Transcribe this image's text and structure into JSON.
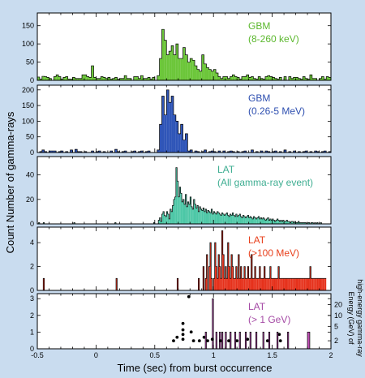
{
  "chart_data": {
    "type": "bar",
    "xlabel": "Time (sec) from burst occurrence",
    "ylabel": "Count Number of gamma-rays",
    "right_ylabel_line1": "high-energy gamma-ray",
    "right_ylabel_line2": "Energy (GeV) of",
    "xlim": [
      -0.5,
      2.0
    ],
    "x_ticks": [
      "-0.5",
      "0",
      "0.5",
      "1",
      "1.5",
      "2"
    ],
    "panels": [
      {
        "label_lines": [
          "GBM",
          "(8-260 keV)"
        ],
        "label_color": "#5cb82e",
        "fill_color": "#6cc63a",
        "ylim": [
          0,
          185
        ],
        "y_ticks": [
          "0",
          "50",
          "100",
          "150"
        ],
        "bin_width": 0.02,
        "x_start": -0.5,
        "values": [
          9,
          3,
          11,
          10,
          8,
          5,
          0,
          10,
          15,
          10,
          3,
          8,
          10,
          3,
          3,
          8,
          5,
          5,
          5,
          15,
          15,
          10,
          8,
          40,
          8,
          5,
          5,
          10,
          8,
          5,
          8,
          3,
          5,
          8,
          3,
          5,
          5,
          13,
          5,
          5,
          0,
          10,
          10,
          5,
          13,
          5,
          5,
          8,
          3,
          8,
          0,
          13,
          60,
          140,
          110,
          70,
          80,
          95,
          70,
          100,
          60,
          60,
          90,
          70,
          50,
          60,
          55,
          40,
          30,
          25,
          70,
          45,
          35,
          30,
          25,
          30,
          20,
          10,
          5,
          10,
          10,
          5,
          10,
          15,
          10,
          8,
          3,
          10,
          10,
          15,
          8,
          10,
          5,
          3,
          10,
          5,
          3,
          10,
          13,
          10,
          8,
          5,
          3,
          8,
          0,
          10,
          0,
          10,
          5,
          8,
          8,
          5,
          3,
          10,
          5,
          3,
          15,
          5,
          5,
          0,
          5,
          10,
          3,
          10,
          8
        ]
      },
      {
        "label_lines": [
          "GBM",
          "(0.26-5 MeV)"
        ],
        "label_color": "#2e4fb0",
        "fill_color": "#2f55b8",
        "ylim": [
          0,
          215
        ],
        "y_ticks": [
          "0",
          "50",
          "100",
          "150",
          "200"
        ],
        "bin_width": 0.02,
        "x_start": -0.5,
        "values": [
          0,
          3,
          8,
          3,
          0,
          5,
          5,
          5,
          0,
          3,
          5,
          0,
          3,
          0,
          8,
          0,
          10,
          3,
          3,
          0,
          3,
          0,
          0,
          5,
          0,
          3,
          5,
          0,
          3,
          0,
          0,
          5,
          0,
          10,
          3,
          0,
          3,
          5,
          0,
          0,
          3,
          5,
          0,
          3,
          5,
          0,
          3,
          5,
          0,
          0,
          0,
          8,
          90,
          180,
          120,
          200,
          160,
          180,
          120,
          100,
          60,
          90,
          40,
          60,
          5,
          8,
          0,
          5,
          3,
          0,
          3,
          8,
          0,
          3,
          5,
          3,
          0,
          5,
          0,
          5,
          0,
          3,
          5,
          3,
          0,
          3,
          0,
          3,
          5,
          0,
          0,
          8,
          0,
          3,
          0,
          5,
          0,
          5,
          3,
          0,
          3,
          5,
          0,
          3,
          0,
          8,
          0,
          3,
          0,
          5,
          0,
          3,
          0,
          3,
          5,
          0,
          3,
          0,
          5,
          3,
          0,
          3,
          5,
          0,
          3
        ]
      },
      {
        "label_lines": [
          "LAT",
          "(All gamma-ray event)"
        ],
        "label_color": "#3fae92",
        "fill_color": "#4cc7a6",
        "ylim": [
          0,
          55
        ],
        "y_ticks": [
          "0",
          "20",
          "40"
        ],
        "bin_width": 0.01,
        "x_start": -0.5,
        "values": [
          0,
          1,
          0,
          0,
          0,
          1,
          0,
          0,
          0,
          0,
          0,
          0,
          0,
          0,
          0,
          0,
          0,
          0,
          0,
          0,
          0,
          0,
          0,
          0,
          0,
          0,
          0,
          0,
          0,
          0,
          0,
          1,
          0,
          0,
          0,
          0,
          0,
          0,
          0,
          0,
          0,
          0,
          0,
          0,
          0,
          0,
          0,
          0,
          0,
          0,
          0,
          0,
          0,
          0,
          0,
          0,
          0,
          0,
          0,
          0,
          0,
          0,
          0,
          0,
          0,
          0,
          1,
          0,
          0,
          0,
          0,
          0,
          0,
          0,
          0,
          0,
          0,
          0,
          0,
          0,
          0,
          0,
          0,
          0,
          0,
          0,
          0,
          0,
          0,
          0,
          0,
          0,
          0,
          0,
          0,
          0,
          0,
          0,
          0,
          1,
          0,
          0,
          0,
          3,
          5,
          2,
          8,
          10,
          7,
          6,
          10,
          8,
          4,
          12,
          10,
          15,
          20,
          22,
          46,
          35,
          22,
          30,
          25,
          18,
          20,
          16,
          24,
          14,
          18,
          16,
          22,
          14,
          12,
          20,
          16,
          13,
          15,
          10,
          14,
          12,
          11,
          13,
          10,
          12,
          9,
          11,
          10,
          9,
          12,
          8,
          10,
          9,
          8,
          10,
          9,
          8,
          7,
          9,
          8,
          7,
          8,
          9,
          7,
          6,
          8,
          7,
          9,
          7,
          6,
          8,
          6,
          7,
          8,
          6,
          5,
          7,
          6,
          5,
          6,
          7,
          5,
          6,
          5,
          4,
          6,
          5,
          4,
          5,
          6,
          4,
          5,
          4,
          5,
          4,
          3,
          4,
          5,
          3,
          4,
          3,
          4,
          3,
          2,
          3,
          4,
          3,
          2,
          3,
          2,
          3,
          2,
          2,
          3,
          2,
          2,
          1,
          2,
          2,
          1,
          2,
          1,
          1,
          2,
          1,
          1,
          1,
          1,
          1,
          1,
          0,
          1,
          1,
          0,
          1,
          1,
          0,
          1,
          0,
          1,
          0,
          0,
          1,
          0,
          0
        ]
      },
      {
        "label_lines": [
          "LAT",
          "(>100 MeV)"
        ],
        "label_color": "#e8401c",
        "fill_color": "#e6311b",
        "ylim": [
          0,
          5.3
        ],
        "y_ticks": [
          "0",
          "2",
          "4"
        ],
        "bin_width": 0.01,
        "x_start": -0.5,
        "values": [
          0,
          0,
          0,
          0,
          0,
          1,
          0,
          0,
          0,
          0,
          0,
          0,
          0,
          0,
          0,
          0,
          0,
          0,
          0,
          0,
          0,
          0,
          0,
          0,
          0,
          0,
          0,
          0,
          0,
          0,
          0,
          0,
          0,
          0,
          0,
          0,
          0,
          0,
          0,
          0,
          0,
          0,
          0,
          0,
          0,
          0,
          0,
          0,
          0,
          0,
          0,
          0,
          0,
          0,
          0,
          0,
          0,
          0,
          0,
          0,
          0,
          0,
          0,
          0,
          0,
          0,
          0,
          1,
          0,
          0,
          0,
          0,
          0,
          0,
          0,
          0,
          0,
          0,
          0,
          0,
          0,
          0,
          0,
          0,
          0,
          0,
          0,
          0,
          0,
          0,
          0,
          0,
          0,
          0,
          0,
          0,
          0,
          0,
          0,
          0,
          0,
          0,
          0,
          0,
          0,
          0,
          0,
          0,
          0,
          0,
          0,
          0,
          0,
          0,
          0,
          0,
          0,
          0,
          0,
          1,
          0,
          0,
          0,
          0,
          0,
          0,
          0,
          0,
          0,
          0,
          0,
          0,
          0,
          0,
          0,
          0,
          0,
          1,
          0,
          0,
          0,
          2,
          0,
          1,
          3,
          0,
          2,
          4,
          1,
          0,
          1,
          4,
          2,
          1,
          3,
          2,
          1,
          5,
          3,
          1,
          2,
          1,
          4,
          2,
          1,
          3,
          2,
          1,
          1,
          2,
          1,
          3,
          1,
          2,
          1,
          1,
          2,
          1,
          1,
          2,
          1,
          1,
          3,
          1,
          1,
          2,
          1,
          1,
          1,
          2,
          1,
          1,
          1,
          2,
          1,
          1,
          1,
          1,
          2,
          1,
          1,
          1,
          1,
          1,
          1,
          2,
          1,
          1,
          1,
          1,
          1,
          1,
          1,
          1,
          1,
          1,
          1,
          1,
          1,
          1,
          1,
          1,
          1,
          1,
          1,
          1,
          1,
          1,
          1,
          1,
          1,
          1,
          2,
          1,
          1,
          1,
          1,
          1,
          1,
          1,
          1,
          1,
          1,
          1,
          1,
          1
        ]
      },
      {
        "label_lines": [
          "LAT",
          "(> 1 GeV)"
        ],
        "label_color": "#a54aa5",
        "fill_color": "#c44db8",
        "ylim": [
          0,
          3.3
        ],
        "y_ticks": [
          "0",
          "1",
          "2",
          "3"
        ],
        "right_ticks": [
          "2",
          "5",
          "10",
          "20"
        ],
        "bin_width": 0.01,
        "x_start": -0.5,
        "values": [
          0,
          0,
          0,
          0,
          0,
          0,
          0,
          0,
          0,
          0,
          0,
          0,
          0,
          0,
          0,
          0,
          0,
          0,
          0,
          0,
          0,
          0,
          0,
          0,
          0,
          0,
          0,
          0,
          0,
          0,
          0,
          0,
          0,
          0,
          0,
          0,
          0,
          0,
          0,
          0,
          0,
          0,
          0,
          0,
          0,
          0,
          0,
          0,
          0,
          0,
          0,
          0,
          0,
          0,
          0,
          0,
          0,
          0,
          0,
          0,
          0,
          0,
          0,
          0,
          0,
          0,
          0,
          0,
          0,
          0,
          0,
          0,
          0,
          0,
          0,
          0,
          0,
          0,
          0,
          0,
          0,
          0,
          0,
          0,
          0,
          0,
          0,
          0,
          0,
          0,
          0,
          0,
          0,
          0,
          0,
          0,
          0,
          0,
          0,
          0,
          0,
          0,
          0,
          0,
          0,
          0,
          0,
          0,
          0,
          0,
          0,
          0,
          0,
          0,
          0,
          0,
          0,
          0,
          0,
          0,
          0,
          0,
          0,
          0,
          0,
          0,
          0,
          0,
          0,
          0,
          0,
          0,
          0,
          0,
          0,
          0,
          0,
          0,
          0,
          0,
          0,
          0,
          0,
          1,
          0,
          0,
          0,
          0,
          0,
          3,
          0,
          0,
          1,
          0,
          0,
          1,
          0,
          1,
          0,
          0,
          1,
          0,
          0,
          0,
          1,
          0,
          0,
          0,
          1,
          0,
          0,
          0,
          1,
          0,
          0,
          0,
          0,
          1,
          0,
          0,
          0,
          1,
          0,
          0,
          0,
          0,
          1,
          0,
          0,
          0,
          0,
          0,
          1,
          0,
          0,
          0,
          0,
          1,
          0,
          0,
          0,
          0,
          0,
          0,
          1,
          0,
          0,
          0,
          0,
          0,
          0,
          0,
          0,
          1,
          0,
          0,
          0,
          0,
          0,
          0,
          0,
          0,
          0,
          0,
          0,
          0,
          0,
          0,
          0,
          0,
          1,
          1,
          0,
          0,
          0,
          0,
          0,
          0,
          0,
          0,
          0,
          0,
          0,
          0,
          0,
          0,
          0,
          0,
          0,
          0
        ],
        "energy_points": [
          {
            "t": 0.74,
            "e": 6.0
          },
          {
            "t": 0.74,
            "e": 4.0
          },
          {
            "t": 0.74,
            "e": 3.0
          },
          {
            "t": 0.74,
            "e": 2.2
          },
          {
            "t": 0.79,
            "e": 33.0
          },
          {
            "t": 0.66,
            "e": 2.0
          },
          {
            "t": 0.69,
            "e": 2.5
          },
          {
            "t": 0.81,
            "e": 3.5
          },
          {
            "t": 0.83,
            "e": 2.0
          },
          {
            "t": 0.88,
            "e": 2.0
          },
          {
            "t": 0.92,
            "e": 2.5
          },
          {
            "t": 0.95,
            "e": 2.0
          },
          {
            "t": 0.99,
            "e": 2.2
          },
          {
            "t": 1.06,
            "e": 2.0
          },
          {
            "t": 1.13,
            "e": 2.0
          },
          {
            "t": 1.2,
            "e": 2.0
          },
          {
            "t": 1.29,
            "e": 2.2
          },
          {
            "t": 1.46,
            "e": 2.0
          },
          {
            "t": 1.56,
            "e": 3.0
          },
          {
            "t": 1.57,
            "e": 2.0
          }
        ]
      }
    ]
  }
}
